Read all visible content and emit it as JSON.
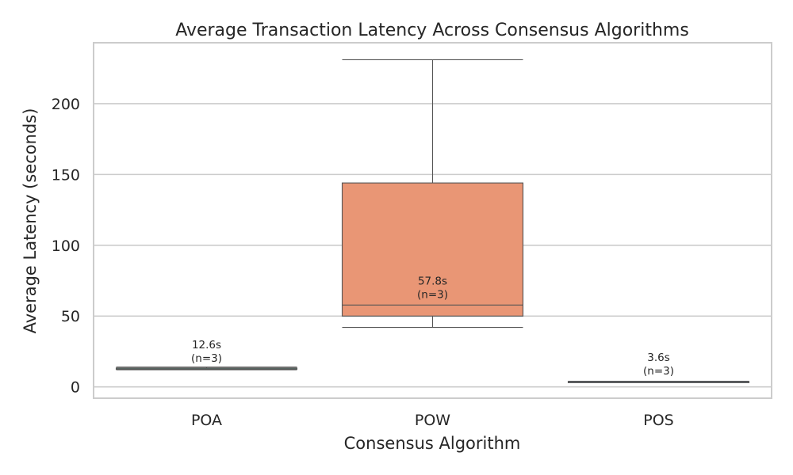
{
  "chart_data": {
    "type": "box",
    "title": "Average Transaction Latency Across Consensus Algorithms",
    "xlabel": "Consensus Algorithm",
    "ylabel": "Average Latency (seconds)",
    "ylim": [
      -8,
      243
    ],
    "yticks": [
      0,
      50,
      100,
      150,
      200
    ],
    "grid": true,
    "categories": [
      "POA",
      "POW",
      "POS"
    ],
    "boxes": [
      {
        "category": "POA",
        "whisker_low": 12.1,
        "q1": 12.6,
        "median": 12.6,
        "q3": 13.3,
        "whisker_high": 14.0,
        "color": "#66c2a5",
        "annotation_value": "12.6s",
        "annotation_n": "(n=3)"
      },
      {
        "category": "POW",
        "whisker_low": 42.0,
        "q1": 50.0,
        "median": 57.8,
        "q3": 144.0,
        "whisker_high": 231.0,
        "color": "#e99675",
        "annotation_value": "57.8s",
        "annotation_n": "(n=3)"
      },
      {
        "category": "POS",
        "whisker_low": 3.4,
        "q1": 3.5,
        "median": 3.6,
        "q3": 3.8,
        "whisker_high": 4.0,
        "color": "#8da0cb",
        "annotation_value": "3.6s",
        "annotation_n": "(n=3)"
      }
    ]
  }
}
